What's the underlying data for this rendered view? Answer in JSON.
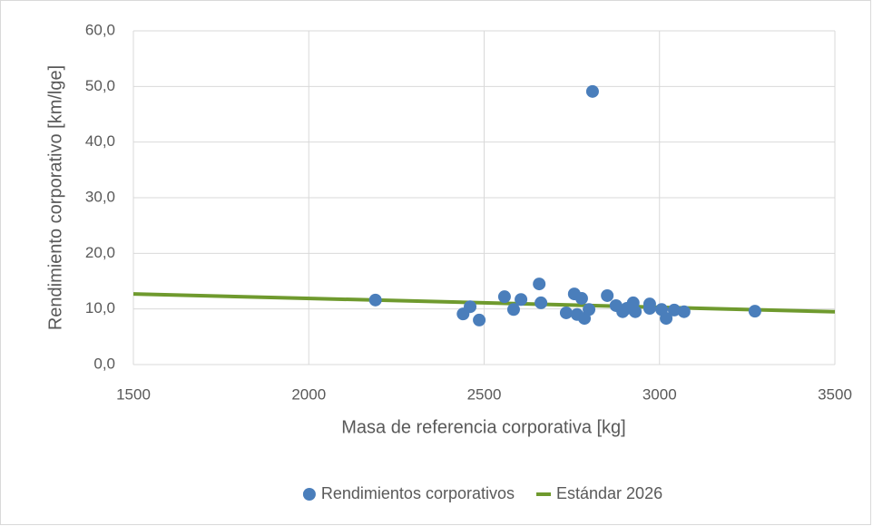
{
  "chart_data": {
    "type": "scatter",
    "xlabel": "Masa de referencia corporativa [kg]",
    "ylabel": "Rendimiento corporativo [km/lge]",
    "xlim": [
      1500,
      3500
    ],
    "xticks": [
      1500,
      2000,
      2500,
      3000,
      3500
    ],
    "ylim": [
      0,
      60
    ],
    "yticks": [
      {
        "value": 0,
        "label": "0,0"
      },
      {
        "value": 10,
        "label": "10,0"
      },
      {
        "value": 20,
        "label": "20,0"
      },
      {
        "value": 30,
        "label": "30,0"
      },
      {
        "value": 40,
        "label": "40,0"
      },
      {
        "value": 50,
        "label": "50,0"
      },
      {
        "value": 60,
        "label": "60,0"
      }
    ],
    "grid": true,
    "legend": "bottom",
    "series": [
      {
        "name": "Rendimientos corporativos",
        "type": "scatter",
        "color": "#4a7ebb",
        "x": [
          2190,
          2440,
          2460,
          2486,
          2558,
          2584,
          2605,
          2657,
          2662,
          2734,
          2757,
          2765,
          2778,
          2786,
          2799,
          2809,
          2851,
          2876,
          2895,
          2907,
          2925,
          2931,
          2972,
          2972,
          3006,
          3019,
          3042,
          3070,
          3272
        ],
        "values": [
          11.6,
          9.1,
          10.4,
          8.0,
          12.2,
          9.9,
          11.7,
          14.5,
          11.1,
          9.3,
          12.7,
          9.0,
          11.9,
          8.3,
          9.9,
          49.1,
          12.4,
          10.6,
          9.5,
          10.1,
          11.1,
          9.5,
          10.9,
          10.1,
          9.9,
          8.3,
          9.8,
          9.5,
          9.6
        ]
      },
      {
        "name": "Estándar 2026",
        "type": "line",
        "color": "#6f9a2e",
        "x": [
          1500,
          3500
        ],
        "values": [
          12.7,
          9.5
        ]
      }
    ]
  }
}
